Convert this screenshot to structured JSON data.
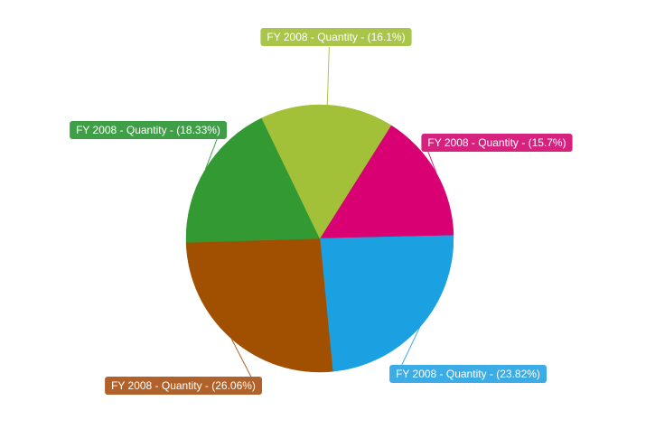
{
  "chart_data": {
    "type": "pie",
    "title": "",
    "slices": [
      {
        "label": "FY 2008 - Quantity - (15.7%)",
        "value": 15.7,
        "color": "#d80073"
      },
      {
        "label": "FY 2008 - Quantity - (23.82%)",
        "value": 23.82,
        "color": "#1ba1e2"
      },
      {
        "label": "FY 2008 - Quantity - (26.06%)",
        "value": 26.06,
        "color": "#a05000"
      },
      {
        "label": "FY 2008 - Quantity - (18.33%)",
        "value": 18.33,
        "color": "#339933"
      },
      {
        "label": "FY 2008 - Quantity - (16.1%)",
        "value": 16.1,
        "color": "#a2c139"
      }
    ],
    "label_colors": [
      "#d6217f",
      "#3cace6",
      "#b0622a",
      "#3f9f46",
      "#a9c64b"
    ],
    "start_angle_degrees_clockwise_from_east": -57.8,
    "legend": "none"
  }
}
